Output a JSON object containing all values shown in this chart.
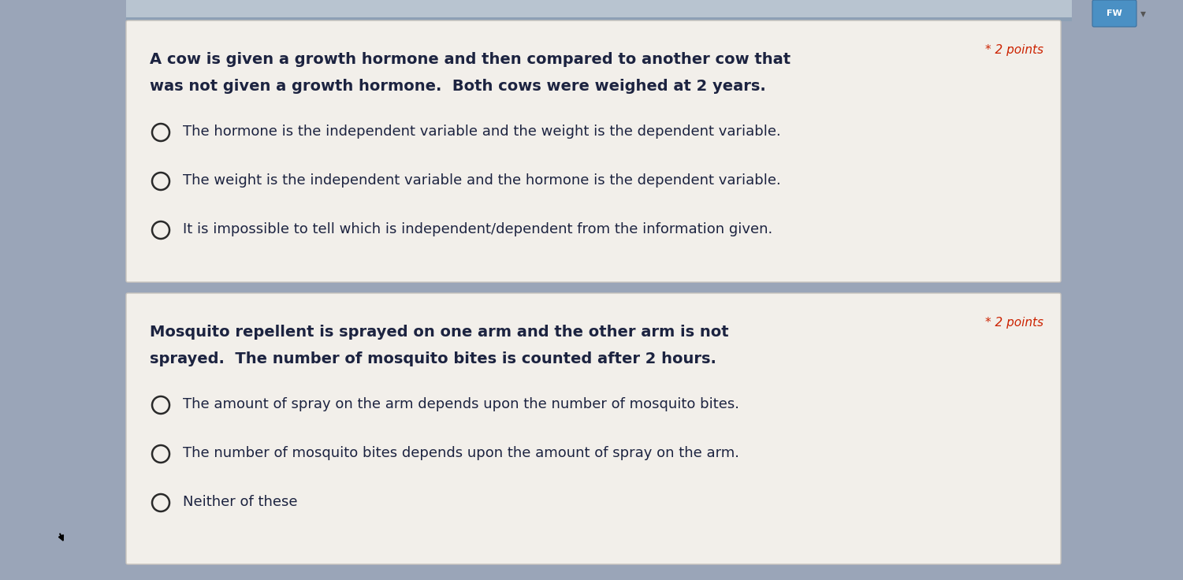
{
  "bg_color": "#9aa5b8",
  "card_color": "#f2efea",
  "card_border": "#c8c4be",
  "q1": {
    "question_line1": "A cow is given a growth hormone and then compared to another cow that",
    "question_line2": "was not given a growth hormone.  Both cows were weighed at 2 years.",
    "points_label": "* 2 points",
    "options": [
      "The hormone is the independent variable and the weight is the dependent variable.",
      "The weight is the independent variable and the hormone is the dependent variable.",
      "It is impossible to tell which is independent/dependent from the information given."
    ]
  },
  "q2": {
    "question_line1": "Mosquito repellent is sprayed on one arm and the other arm is not",
    "question_line2": "sprayed.  The number of mosquito bites is counted after 2 hours.",
    "points_label": "* 2 points",
    "options": [
      "The amount of spray on the arm depends upon the number of mosquito bites.",
      "The number of mosquito bites depends upon the amount of spray on the arm.",
      "Neither of these"
    ]
  },
  "text_color": "#1c2340",
  "points_color": "#cc2200",
  "circle_color": "#2a2a2a",
  "option_font_size": 13,
  "question_font_size": 14,
  "points_font_size": 11,
  "topbar_color": "#8da0b5",
  "topbar2_color": "#b8c4d0"
}
